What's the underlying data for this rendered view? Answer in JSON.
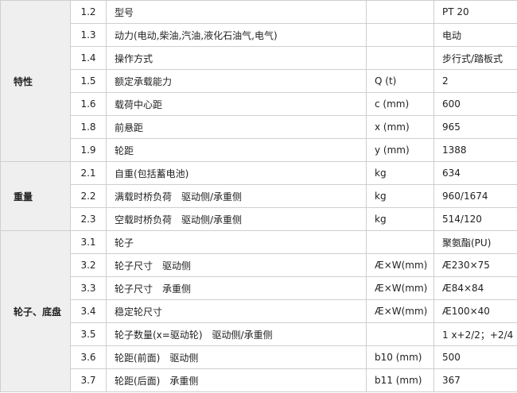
{
  "groups": [
    {
      "label": "特性",
      "rows": [
        {
          "no": "1.2",
          "name": "型号",
          "unit": "",
          "value": "PT 20"
        },
        {
          "no": "1.3",
          "name": "动力(电动,柴油,汽油,液化石油气,电气)",
          "unit": "",
          "value": "电动"
        },
        {
          "no": "1.4",
          "name": "操作方式",
          "unit": "",
          "value": "步行式/踏板式"
        },
        {
          "no": "1.5",
          "name": "额定承载能力",
          "unit": "Q (t)",
          "value": "2"
        },
        {
          "no": "1.6",
          "name": "载荷中心距",
          "unit": "c (mm)",
          "value": "600"
        },
        {
          "no": "1.8",
          "name": "前悬距",
          "unit": "x (mm)",
          "value": "965"
        },
        {
          "no": "1.9",
          "name": "轮距",
          "unit": "y (mm)",
          "value": "1388"
        }
      ]
    },
    {
      "label": "重量",
      "rows": [
        {
          "no": "2.1",
          "name": "自重(包括蓄电池)",
          "unit": "kg",
          "value": "634"
        },
        {
          "no": "2.2",
          "name": "满载时桥负荷　驱动侧/承重侧",
          "unit": "kg",
          "value": "960/1674"
        },
        {
          "no": "2.3",
          "name": "空载时桥负荷　驱动侧/承重侧",
          "unit": "kg",
          "value": "514/120"
        }
      ]
    },
    {
      "label": "轮子、底盘",
      "rows": [
        {
          "no": "3.1",
          "name": "轮子",
          "unit": "",
          "value": "聚氨酯(PU)"
        },
        {
          "no": "3.2",
          "name": "轮子尺寸　驱动侧",
          "unit": "Æ×W(mm)",
          "value": "Æ230×75"
        },
        {
          "no": "3.3",
          "name": "轮子尺寸　承重侧",
          "unit": "Æ×W(mm)",
          "value": "Æ84×84"
        },
        {
          "no": "3.4",
          "name": "稳定轮尺寸",
          "unit": "Æ×W(mm)",
          "value": "Æ100×40"
        },
        {
          "no": "3.5",
          "name": "轮子数量(x=驱动轮)　驱动侧/承重侧",
          "unit": "",
          "value": "1 x+2/2；+2/4"
        },
        {
          "no": "3.6",
          "name": "轮距(前面)　驱动侧",
          "unit": "b10 (mm)",
          "value": "500"
        },
        {
          "no": "3.7",
          "name": "轮距(后面)　承重侧",
          "unit": "b11 (mm)",
          "value": "367"
        }
      ]
    }
  ]
}
